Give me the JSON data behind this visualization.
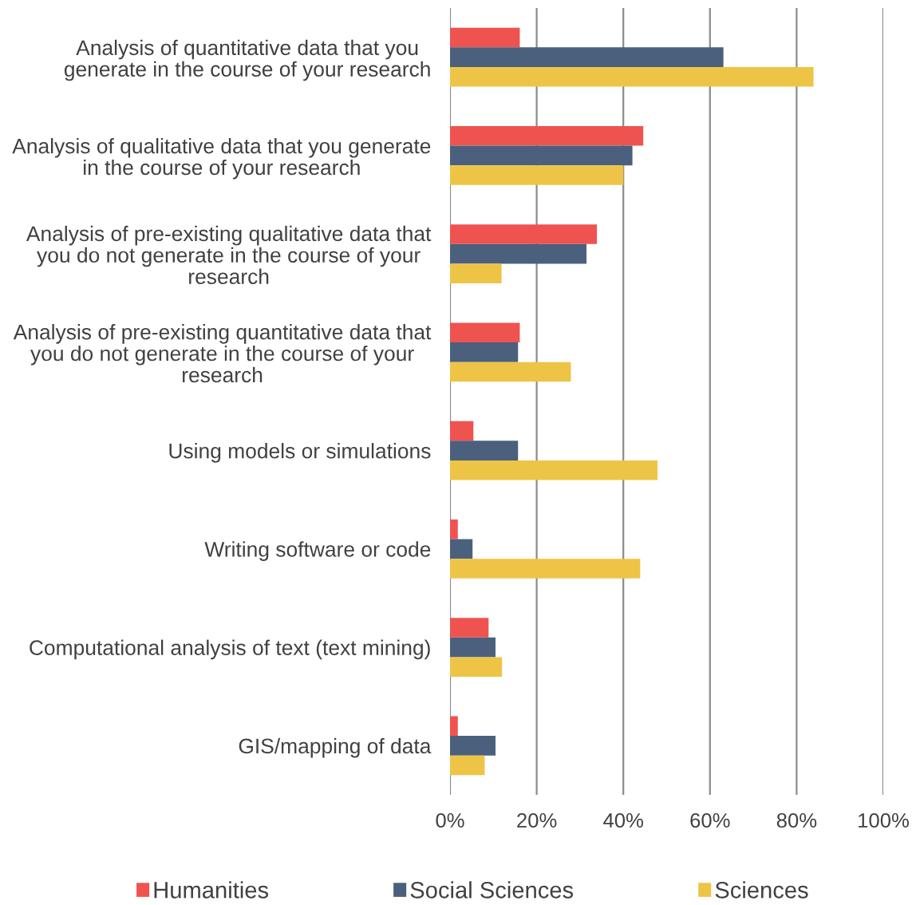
{
  "chart_data": {
    "type": "bar",
    "orientation": "horizontal",
    "categories": [
      "Analysis of quantitative data that you\ngenerate in the course of your research",
      "Analysis of qualitative data that you generate\nin the course of your research",
      "Analysis of pre-existing qualitative data that\nyou do not generate in the course of your\nresearch",
      "Analysis of pre-existing quantitative data that\nyou do not generate in the course of your\nresearch",
      "Using models or simulations",
      "Writing software or code",
      "Computational analysis of text (text mining)",
      "GIS/mapping of data"
    ],
    "series": [
      {
        "name": "Humanities",
        "color": "#ef5350",
        "values": [
          16.1,
          44.6,
          33.9,
          16.1,
          5.4,
          1.8,
          8.9,
          1.8
        ]
      },
      {
        "name": "Social Sciences",
        "color": "#4a607d",
        "values": [
          63.1,
          42.1,
          31.5,
          15.7,
          15.7,
          5.2,
          10.5,
          10.5
        ]
      },
      {
        "name": "Sciences",
        "color": "#eec446",
        "values": [
          83.9,
          40.0,
          11.9,
          27.9,
          47.9,
          43.9,
          12.0,
          8.0
        ]
      }
    ],
    "xlim": [
      0,
      100
    ],
    "xticks": [
      {
        "value": 0,
        "label": "0%"
      },
      {
        "value": 20,
        "label": "20%"
      },
      {
        "value": 40,
        "label": "40%"
      },
      {
        "value": 60,
        "label": "60%"
      },
      {
        "value": 80,
        "label": "80%"
      },
      {
        "value": 100,
        "label": "100%"
      }
    ],
    "grid": "x",
    "legend": "bottom"
  }
}
